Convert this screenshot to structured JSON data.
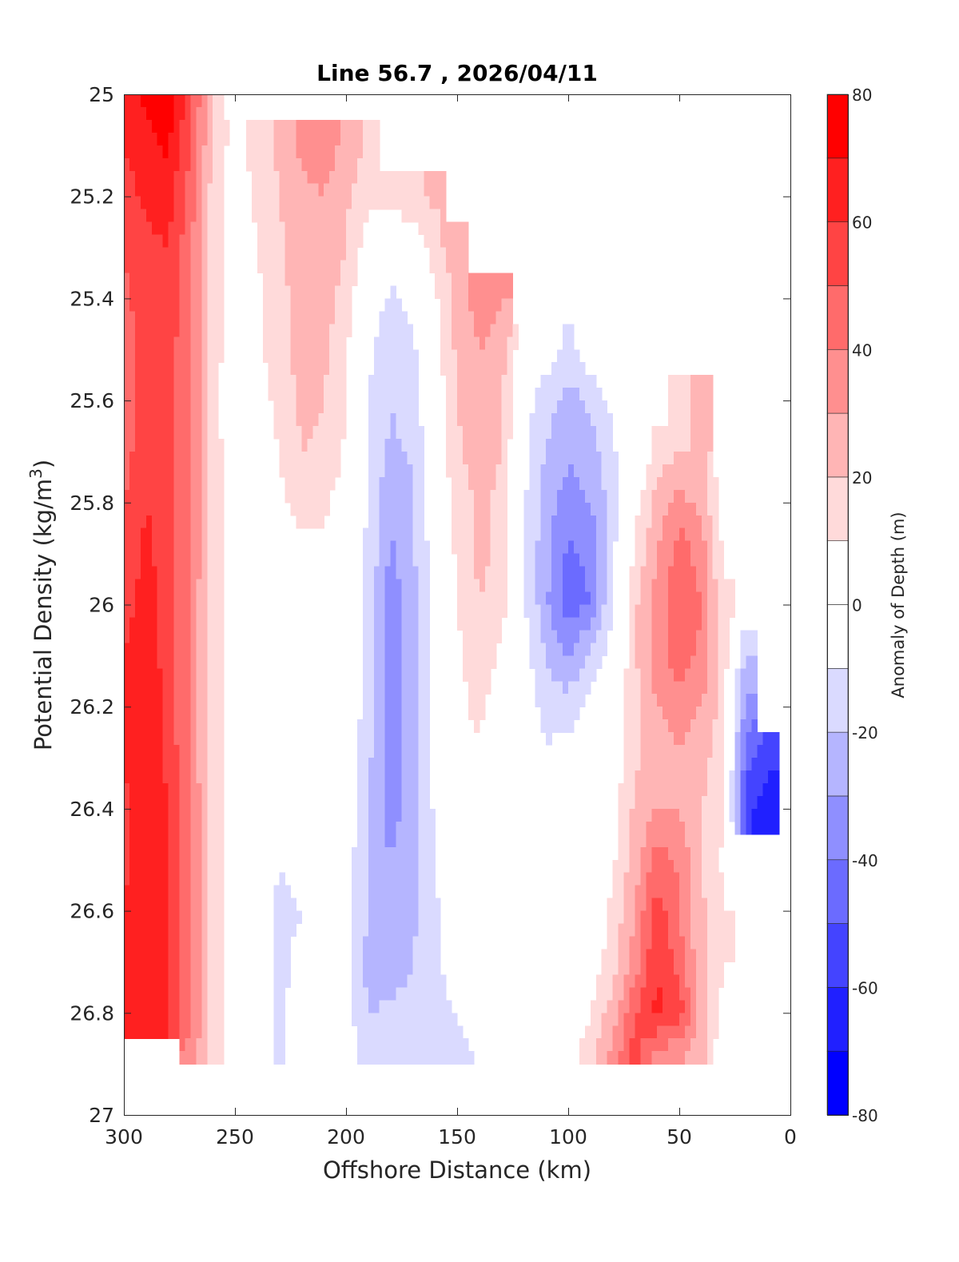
{
  "chart_data": {
    "type": "heatmap",
    "subtype": "filled-contour",
    "title": "Line 56.7 , 2026/04/11",
    "xlabel": "Offshore Distance (km)",
    "ylabel_main": "Potential Density (kg/m",
    "ylabel_sup": "3",
    "ylabel_end": ")",
    "xlim": [
      300,
      0
    ],
    "ylim": [
      25,
      27
    ],
    "x_ticks": [
      "300",
      "250",
      "200",
      "150",
      "100",
      "50",
      "0"
    ],
    "x_tick_values": [
      300,
      250,
      200,
      150,
      100,
      50,
      0
    ],
    "y_ticks": [
      "25",
      "25.2",
      "25.4",
      "25.6",
      "25.8",
      "26",
      "26.2",
      "26.4",
      "26.6",
      "26.8",
      "27"
    ],
    "y_tick_values": [
      25,
      25.2,
      25.4,
      25.6,
      25.8,
      26,
      26.2,
      26.4,
      26.6,
      26.8,
      27
    ],
    "colorbar": {
      "label": "Anomaly of Depth (m)",
      "range": [
        -80,
        80
      ],
      "step": 10,
      "ticks": [
        "80",
        "60",
        "40",
        "20",
        "0",
        "-20",
        "-40",
        "-60",
        "-80"
      ],
      "tick_values": [
        80,
        60,
        40,
        20,
        0,
        -20,
        -40,
        -60,
        -80
      ],
      "colors": [
        "#0000ff",
        "#2020ff",
        "#4444ff",
        "#6b6bff",
        "#8f8fff",
        "#b5b5ff",
        "#dadaff",
        "#ffffff",
        "#ffffff",
        "#ffdada",
        "#ffb5b5",
        "#ff8f8f",
        "#ff6b6b",
        "#ff4444",
        "#ff2020",
        "#ff0000"
      ]
    },
    "x": [
      300,
      290,
      280,
      270,
      260,
      250,
      240,
      230,
      220,
      210,
      200,
      190,
      180,
      170,
      160,
      150,
      140,
      130,
      120,
      110,
      100,
      90,
      80,
      70,
      60,
      50,
      40,
      30,
      20,
      10,
      0
    ],
    "y": [
      25.0,
      25.1,
      25.2,
      25.3,
      25.4,
      25.5,
      25.6,
      25.7,
      25.8,
      25.9,
      26.0,
      26.1,
      26.2,
      26.3,
      26.4,
      26.5,
      26.6,
      26.7,
      26.8,
      26.9
    ],
    "z": [
      [
        62,
        72,
        75,
        55,
        18,
        null,
        null,
        null,
        null,
        null,
        null,
        null,
        null,
        null,
        null,
        null,
        null,
        null,
        null,
        null,
        null,
        null,
        null,
        null,
        null,
        null,
        null,
        null,
        null,
        null,
        null
      ],
      [
        60,
        68,
        72,
        50,
        18,
        5,
        15,
        22,
        32,
        35,
        28,
        18,
        null,
        null,
        null,
        null,
        null,
        null,
        null,
        null,
        null,
        null,
        null,
        null,
        null,
        null,
        null,
        null,
        null,
        null,
        null
      ],
      [
        55,
        62,
        65,
        45,
        16,
        3,
        12,
        20,
        28,
        30,
        22,
        12,
        15,
        18,
        22,
        null,
        null,
        null,
        null,
        null,
        null,
        null,
        null,
        null,
        null,
        null,
        null,
        null,
        null,
        null,
        null
      ],
      [
        50,
        58,
        60,
        42,
        15,
        2,
        10,
        18,
        25,
        28,
        20,
        5,
        -2,
        2,
        15,
        28,
        null,
        null,
        null,
        null,
        null,
        null,
        null,
        null,
        null,
        null,
        null,
        null,
        null,
        null,
        null
      ],
      [
        48,
        55,
        58,
        40,
        15,
        2,
        8,
        17,
        24,
        25,
        15,
        -5,
        -12,
        -8,
        8,
        24,
        35,
        30,
        null,
        null,
        null,
        null,
        null,
        null,
        null,
        null,
        null,
        null,
        null,
        null,
        null
      ],
      [
        45,
        55,
        55,
        40,
        15,
        2,
        8,
        16,
        24,
        22,
        12,
        -8,
        -15,
        -12,
        5,
        22,
        30,
        25,
        2,
        -5,
        -12,
        -2,
        5,
        null,
        null,
        null,
        null,
        null,
        null,
        null,
        null
      ],
      [
        42,
        55,
        55,
        40,
        15,
        1,
        3,
        14,
        22,
        20,
        10,
        -10,
        -20,
        -16,
        2,
        20,
        28,
        22,
        -5,
        -15,
        -25,
        -18,
        -8,
        null,
        null,
        18,
        22,
        null,
        null,
        null,
        null
      ],
      [
        45,
        58,
        55,
        40,
        15,
        2,
        0,
        10,
        20,
        18,
        8,
        -12,
        -22,
        -18,
        0,
        18,
        25,
        20,
        -8,
        -20,
        -28,
        -25,
        -12,
        2,
        12,
        20,
        20,
        null,
        null,
        null,
        null
      ],
      [
        50,
        60,
        55,
        40,
        15,
        3,
        0,
        8,
        12,
        12,
        5,
        -12,
        -28,
        -22,
        -2,
        15,
        22,
        18,
        -8,
        -25,
        -35,
        -30,
        -15,
        5,
        25,
        35,
        25,
        5,
        null,
        null,
        null
      ],
      [
        52,
        62,
        55,
        40,
        15,
        3,
        0,
        6,
        8,
        8,
        3,
        -12,
        -32,
        -22,
        -3,
        12,
        22,
        18,
        -8,
        -28,
        -42,
        -38,
        -12,
        12,
        30,
        45,
        35,
        8,
        null,
        null,
        null
      ],
      [
        55,
        65,
        55,
        38,
        15,
        3,
        0,
        4,
        5,
        5,
        2,
        -15,
        -35,
        -25,
        -4,
        10,
        20,
        15,
        -8,
        -28,
        -45,
        -40,
        -10,
        18,
        35,
        48,
        40,
        12,
        null,
        null,
        null
      ],
      [
        60,
        68,
        55,
        38,
        15,
        3,
        0,
        3,
        3,
        2,
        0,
        -15,
        -35,
        -25,
        -5,
        8,
        15,
        8,
        -5,
        -20,
        -30,
        -18,
        -5,
        18,
        35,
        45,
        38,
        15,
        -20,
        null,
        null
      ],
      [
        62,
        70,
        55,
        38,
        15,
        4,
        0,
        2,
        2,
        1,
        0,
        -15,
        -35,
        -25,
        -5,
        8,
        12,
        5,
        -3,
        -15,
        -15,
        -5,
        0,
        18,
        30,
        35,
        30,
        15,
        -35,
        null,
        null
      ],
      [
        60,
        68,
        58,
        38,
        15,
        4,
        0,
        2,
        2,
        0,
        -2,
        -18,
        -35,
        -25,
        -5,
        5,
        8,
        3,
        0,
        -8,
        -5,
        0,
        3,
        18,
        25,
        28,
        25,
        12,
        -45,
        -55,
        null
      ],
      [
        58,
        65,
        60,
        40,
        16,
        5,
        -2,
        -5,
        1,
        0,
        -3,
        -20,
        -35,
        -25,
        -8,
        3,
        5,
        2,
        0,
        -3,
        -2,
        0,
        5,
        22,
        30,
        30,
        20,
        10,
        -55,
        -70,
        null
      ],
      [
        58,
        65,
        62,
        40,
        16,
        5,
        -3,
        -10,
        -5,
        0,
        -3,
        -22,
        -30,
        -22,
        -10,
        0,
        4,
        2,
        0,
        0,
        0,
        0,
        8,
        25,
        45,
        38,
        20,
        8,
        null,
        null,
        null
      ],
      [
        60,
        68,
        62,
        42,
        16,
        5,
        -5,
        -12,
        -10,
        0,
        -5,
        -20,
        -28,
        -22,
        -12,
        -2,
        3,
        2,
        0,
        0,
        0,
        2,
        12,
        30,
        55,
        40,
        22,
        10,
        null,
        null,
        null
      ],
      [
        65,
        70,
        62,
        42,
        16,
        5,
        -5,
        -12,
        -8,
        0,
        -5,
        -25,
        -28,
        -20,
        -12,
        -5,
        1,
        1,
        0,
        0,
        0,
        4,
        15,
        35,
        60,
        45,
        22,
        10,
        null,
        null,
        null
      ],
      [
        65,
        70,
        62,
        42,
        16,
        5,
        -5,
        -12,
        -5,
        0,
        -5,
        -20,
        -18,
        -15,
        -12,
        -10,
        -5,
        0,
        0,
        0,
        2,
        10,
        25,
        50,
        62,
        55,
        25,
        5,
        null,
        null,
        null
      ],
      [
        null,
        null,
        null,
        35,
        16,
        3,
        -5,
        -12,
        -5,
        0,
        -5,
        -15,
        -12,
        -12,
        -12,
        -12,
        -10,
        -5,
        0,
        0,
        5,
        18,
        35,
        55,
        30,
        28,
        20,
        null,
        null,
        null,
        null
      ]
    ]
  }
}
